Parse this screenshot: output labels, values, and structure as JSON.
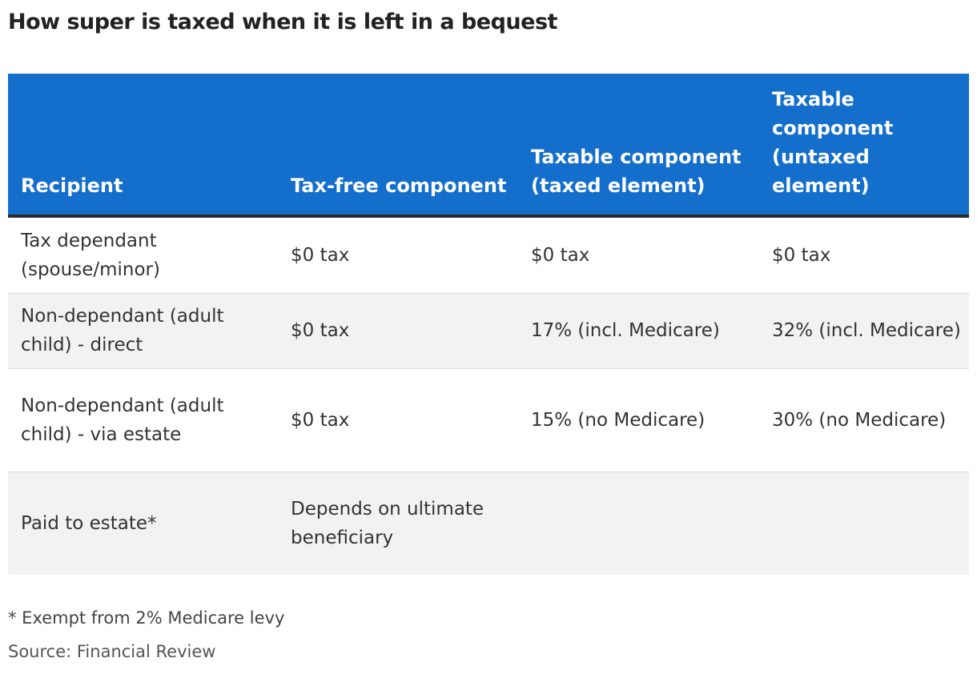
{
  "title": "How super is taxed when it is left in a bequest",
  "columns": [
    "Recipient",
    "Tax-free component",
    "Taxable component (taxed element)",
    "Taxable component (untaxed element)"
  ],
  "rows": [
    [
      "Tax dependant (spouse/minor)",
      "$0 tax",
      "$0 tax",
      "$0 tax"
    ],
    [
      "Non-dependant (adult child) - direct",
      "$0 tax",
      "17% (incl. Medicare)",
      "32% (incl. Medicare)"
    ],
    [
      "Non-dependant (adult child) - via estate",
      "$0 tax",
      "15% (no Medicare)",
      "30% (no Medicare)"
    ],
    [
      "Paid to estate*",
      "Depends on ultimate beneficiary",
      "",
      ""
    ]
  ],
  "footnote": "* Exempt from 2% Medicare levy",
  "source": "Source: Financial Review",
  "colors": {
    "header_bg": "#136ecc",
    "shaded_row": "#f2f2f2"
  }
}
